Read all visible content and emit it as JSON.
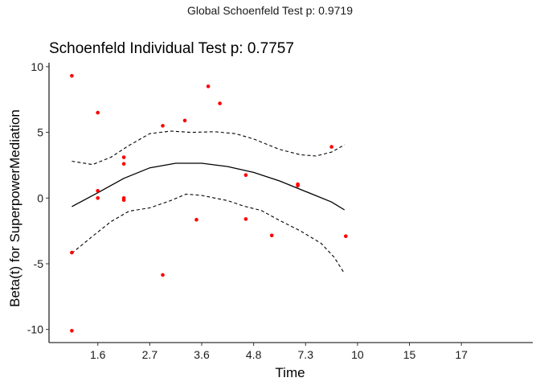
{
  "global_title": "Global Schoenfeld Test p: 0.9719",
  "chart_data": {
    "type": "scatter",
    "title": "Schoenfeld Individual Test p: 0.7757",
    "xlabel": "Time",
    "ylabel": "Beta(t) for SuperpowerMediation",
    "x_ticks": [
      {
        "pos": 2,
        "label": "1.6"
      },
      {
        "pos": 4,
        "label": "2.7"
      },
      {
        "pos": 6,
        "label": "3.6"
      },
      {
        "pos": 8,
        "label": "4.8"
      },
      {
        "pos": 10,
        "label": "7.3"
      },
      {
        "pos": 12,
        "label": "10"
      },
      {
        "pos": 14,
        "label": "15"
      },
      {
        "pos": 16,
        "label": "17"
      }
    ],
    "x_range": [
      0.12,
      18.75
    ],
    "ylim": [
      -11.0,
      10.3
    ],
    "y_ticks": [
      10,
      5,
      0,
      -5,
      -10
    ],
    "y_tick_labels": [
      "10",
      "5",
      "0",
      "-5",
      "-10"
    ],
    "points": [
      {
        "x": 1.0,
        "y": 9.3
      },
      {
        "x": 1.0,
        "y": -4.15
      },
      {
        "x": 1.0,
        "y": -10.1
      },
      {
        "x": 2.0,
        "y": 6.5
      },
      {
        "x": 2.0,
        "y": 0.55
      },
      {
        "x": 2.0,
        "y": 0.0
      },
      {
        "x": 3.0,
        "y": 3.1
      },
      {
        "x": 3.0,
        "y": 2.6
      },
      {
        "x": 3.0,
        "y": 0.0
      },
      {
        "x": 3.0,
        "y": -0.15
      },
      {
        "x": 4.5,
        "y": 5.5
      },
      {
        "x": 4.5,
        "y": -5.85
      },
      {
        "x": 5.35,
        "y": 5.9
      },
      {
        "x": 5.8,
        "y": -1.65
      },
      {
        "x": 6.25,
        "y": 8.5
      },
      {
        "x": 6.7,
        "y": 7.2
      },
      {
        "x": 7.7,
        "y": 1.75
      },
      {
        "x": 7.7,
        "y": -1.6
      },
      {
        "x": 8.7,
        "y": -2.85
      },
      {
        "x": 9.7,
        "y": 1.05
      },
      {
        "x": 9.7,
        "y": 0.95
      },
      {
        "x": 11.0,
        "y": 3.9
      },
      {
        "x": 11.55,
        "y": -2.9
      }
    ],
    "fit_line": [
      {
        "x": 1.0,
        "y": -0.65
      },
      {
        "x": 2.0,
        "y": 0.4
      },
      {
        "x": 3.0,
        "y": 1.5
      },
      {
        "x": 4.0,
        "y": 2.3
      },
      {
        "x": 5.0,
        "y": 2.65
      },
      {
        "x": 6.0,
        "y": 2.65
      },
      {
        "x": 7.0,
        "y": 2.4
      },
      {
        "x": 8.0,
        "y": 1.95
      },
      {
        "x": 9.0,
        "y": 1.3
      },
      {
        "x": 10.0,
        "y": 0.5
      },
      {
        "x": 11.0,
        "y": -0.3
      },
      {
        "x": 11.5,
        "y": -0.9
      }
    ],
    "upper_band": [
      {
        "x": 1.0,
        "y": 2.8
      },
      {
        "x": 1.8,
        "y": 2.55
      },
      {
        "x": 2.5,
        "y": 3.1
      },
      {
        "x": 3.2,
        "y": 4.0
      },
      {
        "x": 4.0,
        "y": 4.9
      },
      {
        "x": 4.8,
        "y": 5.1
      },
      {
        "x": 5.6,
        "y": 5.0
      },
      {
        "x": 6.5,
        "y": 5.05
      },
      {
        "x": 7.3,
        "y": 4.9
      },
      {
        "x": 8.0,
        "y": 4.5
      },
      {
        "x": 9.0,
        "y": 3.7
      },
      {
        "x": 9.8,
        "y": 3.3
      },
      {
        "x": 10.4,
        "y": 3.2
      },
      {
        "x": 11.0,
        "y": 3.5
      },
      {
        "x": 11.5,
        "y": 4.05
      }
    ],
    "lower_band": [
      {
        "x": 1.0,
        "y": -4.2
      },
      {
        "x": 1.8,
        "y": -2.9
      },
      {
        "x": 2.5,
        "y": -1.8
      },
      {
        "x": 3.2,
        "y": -1.0
      },
      {
        "x": 4.0,
        "y": -0.75
      },
      {
        "x": 4.8,
        "y": -0.2
      },
      {
        "x": 5.4,
        "y": 0.3
      },
      {
        "x": 6.0,
        "y": 0.2
      },
      {
        "x": 7.0,
        "y": -0.2
      },
      {
        "x": 7.6,
        "y": -0.6
      },
      {
        "x": 8.3,
        "y": -0.95
      },
      {
        "x": 9.0,
        "y": -1.7
      },
      {
        "x": 9.8,
        "y": -2.5
      },
      {
        "x": 10.6,
        "y": -3.45
      },
      {
        "x": 11.1,
        "y": -4.5
      },
      {
        "x": 11.5,
        "y": -5.75
      }
    ],
    "point_color": "#ff0000",
    "line_color": "#000000",
    "grid": false
  }
}
